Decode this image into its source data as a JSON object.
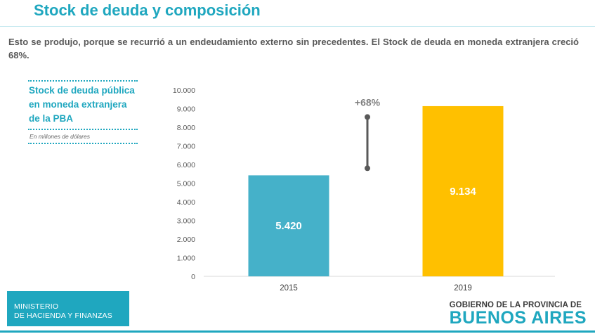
{
  "header": {
    "title": "Stock de deuda y composición"
  },
  "intro": "Esto se produjo, porque se recurrió a un endeudamiento externo sin precedentes. El Stock de deuda en moneda extranjera creció 68%.",
  "side_panel": {
    "title": "Stock de deuda pública en moneda extranjera de la PBA",
    "unit": "En millones de dólares"
  },
  "chart_data": {
    "type": "bar",
    "categories": [
      "2015",
      "2019"
    ],
    "values": [
      5420,
      9134
    ],
    "value_labels": [
      "5.420",
      "9.134"
    ],
    "colors": [
      "#45b1c9",
      "#ffc000"
    ],
    "ylim": [
      0,
      10000
    ],
    "yticks": [
      0,
      1000,
      2000,
      3000,
      4000,
      5000,
      6000,
      7000,
      8000,
      9000,
      10000
    ],
    "ytick_labels": [
      "0",
      "1.000",
      "2.000",
      "3.000",
      "4.000",
      "5.000",
      "6.000",
      "7.000",
      "8.000",
      "9.000",
      "10.000"
    ],
    "grid": false,
    "annotation": {
      "text": "+68%",
      "from": 5800,
      "to": 8550
    },
    "title": "",
    "xlabel": "",
    "ylabel": ""
  },
  "footer": {
    "ministry_line1": "MINISTERIO",
    "ministry_line2": "DE HACIENDA Y FINANZAS",
    "gov_line1": "GOBIERNO DE LA PROVINCIA DE",
    "gov_line2": "BUENOS AIRES"
  }
}
